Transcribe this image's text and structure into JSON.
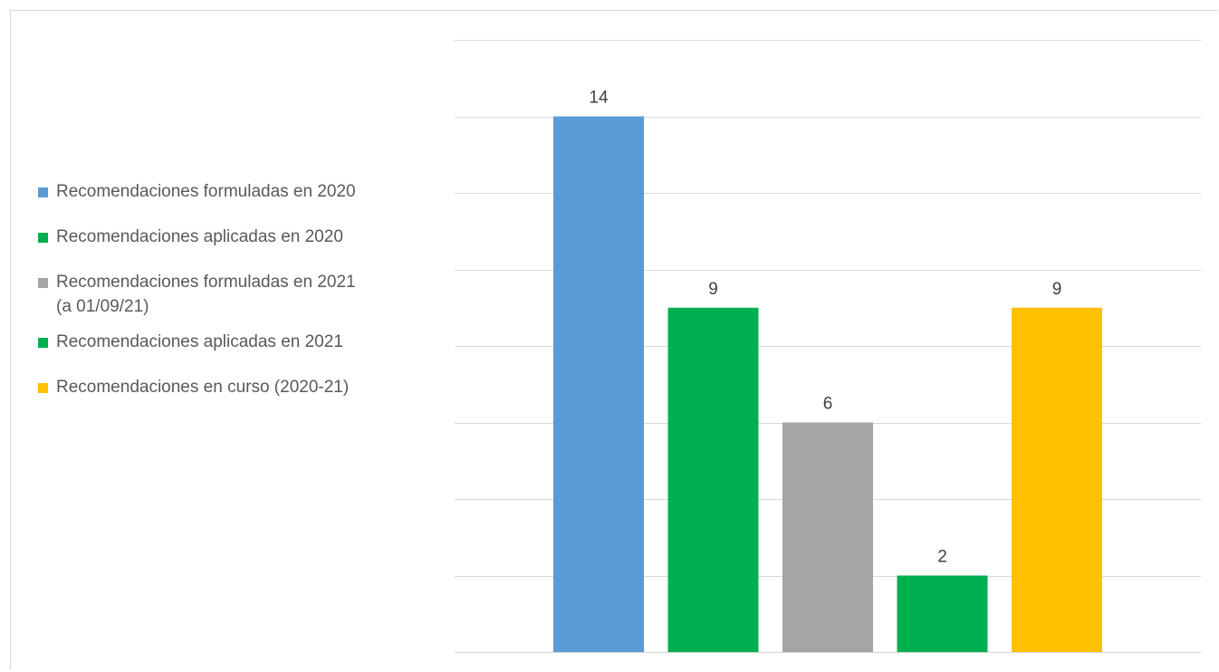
{
  "chart_data": {
    "type": "bar",
    "categories": [
      "Recomendaciones formuladas en 2020",
      "Recomendaciones aplicadas en 2020",
      "Recomendaciones formuladas en 2021 (a 01/09/21)",
      "Recomendaciones aplicadas en 2021",
      "Recomendaciones en curso (2020-21)"
    ],
    "values": [
      14,
      9,
      6,
      2,
      9
    ],
    "data_labels": [
      "14",
      "9",
      "6",
      "2",
      "9"
    ],
    "colors": [
      "#5b9bd5",
      "#00b050",
      "#a5a5a5",
      "#00b050",
      "#ffc000"
    ],
    "ylim": [
      0,
      16
    ],
    "y_gridline_step": 2,
    "grid": true,
    "legend_position": "left",
    "title": "",
    "xlabel": "",
    "ylabel": ""
  },
  "legend": {
    "items": [
      {
        "label": "Recomendaciones formuladas en 2020",
        "color": "#5b9bd5"
      },
      {
        "label": "Recomendaciones aplicadas en 2020",
        "color": "#00b050"
      },
      {
        "label_line1": "Recomendaciones formuladas en 2021",
        "label_line2": "(a 01/09/21)",
        "color": "#a5a5a5"
      },
      {
        "label": "Recomendaciones aplicadas en 2021",
        "color": "#00b050"
      },
      {
        "label": "Recomendaciones en curso (2020-21)",
        "color": "#ffc000"
      }
    ]
  }
}
